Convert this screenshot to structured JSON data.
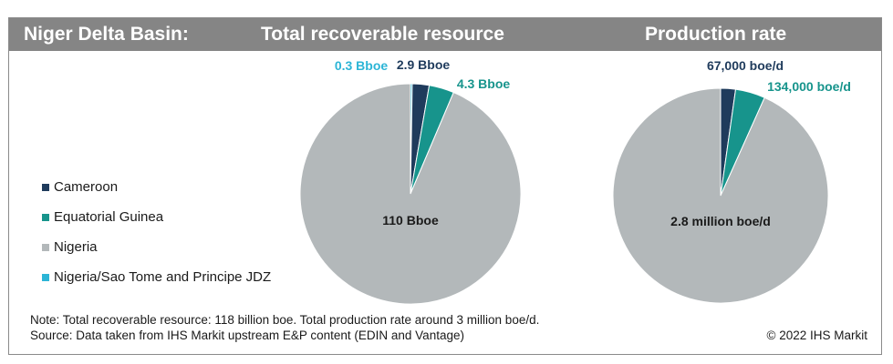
{
  "header": {
    "basin": "Niger Delta Basin:",
    "total_title": "Total recoverable resource",
    "production_title": "Production rate"
  },
  "legend": {
    "items": [
      {
        "label": "Cameroon",
        "color": "#1f3b5c"
      },
      {
        "label": "Equatorial Guinea",
        "color": "#17948c"
      },
      {
        "label": "Nigeria",
        "color": "#b3b8ba"
      },
      {
        "label": "Nigeria/Sao Tome and Principe JDZ",
        "color": "#2cb5d6"
      }
    ]
  },
  "chart_data": [
    {
      "type": "pie",
      "title": "Total recoverable resource",
      "unit": "Bboe",
      "slices": [
        {
          "name": "Nigeria/Sao Tome and Principe JDZ",
          "value": 0.3,
          "label": "0.3 Bboe",
          "color": "#2cb5d6"
        },
        {
          "name": "Cameroon",
          "value": 2.9,
          "label": "2.9 Bboe",
          "color": "#1f3b5c"
        },
        {
          "name": "Equatorial Guinea",
          "value": 4.3,
          "label": "4.3 Bboe",
          "color": "#17948c"
        },
        {
          "name": "Nigeria",
          "value": 110,
          "label": "110 Bboe",
          "color": "#b3b8ba"
        }
      ]
    },
    {
      "type": "pie",
      "title": "Production rate",
      "unit": "boe/d",
      "slices": [
        {
          "name": "Cameroon",
          "value": 67000,
          "label": "67,000 boe/d",
          "color": "#1f3b5c"
        },
        {
          "name": "Equatorial Guinea",
          "value": 134000,
          "label": "134,000 boe/d",
          "color": "#17948c"
        },
        {
          "name": "Nigeria",
          "value": 2800000,
          "label": "2.8 million boe/d",
          "color": "#b3b8ba"
        }
      ]
    }
  ],
  "footer": {
    "note": "Note: Total recoverable resource: 118 billion boe. Total production rate around 3 million boe/d.",
    "source": "Source: Data taken from IHS Markit upstream E&P content (EDIN and Vantage)",
    "copyright": "© 2022 IHS Markit"
  }
}
